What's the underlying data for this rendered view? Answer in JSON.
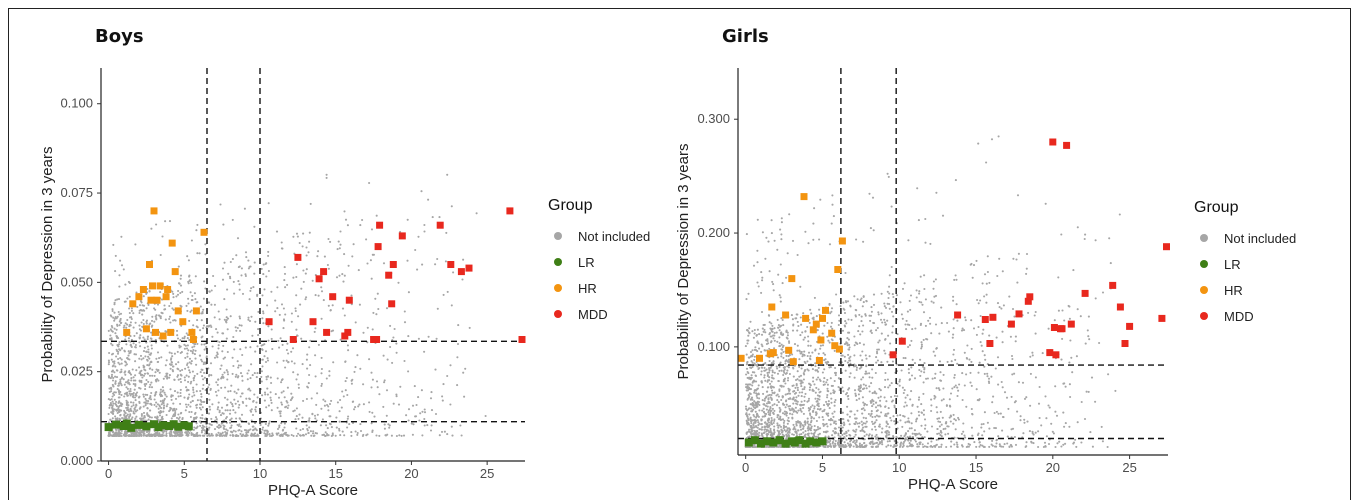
{
  "colors": {
    "not_included": "#a6a6a6",
    "lr": "#3f7f16",
    "hr": "#f39410",
    "mdd": "#e8281e"
  },
  "chart_data": [
    {
      "type": "scatter",
      "title": "Boys",
      "xlabel": "PHQ-A Score",
      "ylabel": "Probability of Depression in 3 years",
      "xlim": [
        -0.5,
        27.5
      ],
      "ylim": [
        0,
        0.11
      ],
      "xticks": [
        0,
        5,
        10,
        15,
        20,
        25
      ],
      "yticks": [
        0,
        0.025,
        0.05,
        0.075,
        0.1
      ],
      "ytick_labels": [
        "0.000",
        "0.025",
        "0.050",
        "0.075",
        "0.100"
      ],
      "vlines": [
        6.5,
        10
      ],
      "hlines": [
        0.011,
        0.0335
      ],
      "legend": {
        "title": "Group",
        "position": "right",
        "entries": [
          "Not included",
          "LR",
          "HR",
          "MDD"
        ]
      },
      "background": {
        "name": "Not included",
        "n": 2600,
        "hmin": 0.007,
        "hmax": 0.075,
        "maxval": 0.1
      },
      "series": [
        {
          "name": "LR",
          "points": [
            [
              0,
              0.0095
            ],
            [
              0.5,
              0.0102
            ],
            [
              1,
              0.0098
            ],
            [
              1.2,
              0.0105
            ],
            [
              1.5,
              0.0093
            ],
            [
              2,
              0.0101
            ],
            [
              2.5,
              0.0097
            ],
            [
              3,
              0.0103
            ],
            [
              3.3,
              0.0095
            ],
            [
              3.6,
              0.01
            ],
            [
              4,
              0.0098
            ],
            [
              4.3,
              0.0103
            ],
            [
              4.6,
              0.0096
            ],
            [
              5,
              0.01
            ],
            [
              5.3,
              0.0097
            ]
          ]
        },
        {
          "name": "HR",
          "points": [
            [
              1.2,
              0.036
            ],
            [
              1.6,
              0.044
            ],
            [
              2,
              0.046
            ],
            [
              2.3,
              0.048
            ],
            [
              2.5,
              0.037
            ],
            [
              2.7,
              0.055
            ],
            [
              2.8,
              0.045
            ],
            [
              2.9,
              0.049
            ],
            [
              3,
              0.07
            ],
            [
              3.1,
              0.036
            ],
            [
              3.2,
              0.045
            ],
            [
              3.4,
              0.049
            ],
            [
              3.6,
              0.035
            ],
            [
              3.8,
              0.046
            ],
            [
              3.9,
              0.048
            ],
            [
              4.1,
              0.036
            ],
            [
              4.2,
              0.061
            ],
            [
              4.4,
              0.053
            ],
            [
              4.6,
              0.042
            ],
            [
              4.9,
              0.039
            ],
            [
              5.5,
              0.036
            ],
            [
              5.6,
              0.034
            ],
            [
              5.8,
              0.042
            ],
            [
              6.3,
              0.064
            ]
          ]
        },
        {
          "name": "MDD",
          "points": [
            [
              10.6,
              0.039
            ],
            [
              12.2,
              0.034
            ],
            [
              12.5,
              0.057
            ],
            [
              13.5,
              0.039
            ],
            [
              13.9,
              0.051
            ],
            [
              14.2,
              0.053
            ],
            [
              14.4,
              0.036
            ],
            [
              14.8,
              0.046
            ],
            [
              15.6,
              0.035
            ],
            [
              15.8,
              0.036
            ],
            [
              15.9,
              0.045
            ],
            [
              17.5,
              0.034
            ],
            [
              17.7,
              0.034
            ],
            [
              17.8,
              0.06
            ],
            [
              17.9,
              0.066
            ],
            [
              18.5,
              0.052
            ],
            [
              18.7,
              0.044
            ],
            [
              18.8,
              0.055
            ],
            [
              19.4,
              0.063
            ],
            [
              21.9,
              0.066
            ],
            [
              22.6,
              0.055
            ],
            [
              23.3,
              0.053
            ],
            [
              23.8,
              0.054
            ],
            [
              26.5,
              0.07
            ],
            [
              27.3,
              0.034
            ]
          ]
        }
      ]
    },
    {
      "type": "scatter",
      "title": "Girls",
      "xlabel": "PHQ-A Score",
      "ylabel": "Probability of Depression in 3 years",
      "xlim": [
        -0.5,
        27.5
      ],
      "ylim": [
        0.005,
        0.345
      ],
      "xticks": [
        0,
        5,
        10,
        15,
        20,
        25
      ],
      "yticks": [
        0.1,
        0.2,
        0.3
      ],
      "ytick_labels": [
        "0.100",
        "0.200",
        "0.300"
      ],
      "vlines": [
        6.2,
        9.8
      ],
      "hlines": [
        0.0195,
        0.084
      ],
      "legend": {
        "title": "Group",
        "position": "right",
        "entries": [
          "Not included",
          "LR",
          "HR",
          "MDD"
        ]
      },
      "background": {
        "name": "Not included",
        "n": 2900,
        "hmin": 0.012,
        "hmax": 0.2,
        "maxval": 0.34
      },
      "series": [
        {
          "name": "LR",
          "points": [
            [
              0.2,
              0.016
            ],
            [
              0.6,
              0.018
            ],
            [
              1,
              0.015
            ],
            [
              1.4,
              0.017
            ],
            [
              1.8,
              0.016
            ],
            [
              2.2,
              0.018
            ],
            [
              2.6,
              0.015
            ],
            [
              3,
              0.017
            ],
            [
              3.2,
              0.016
            ],
            [
              3.5,
              0.018
            ],
            [
              3.9,
              0.015
            ],
            [
              4.2,
              0.017
            ],
            [
              4.6,
              0.016
            ],
            [
              5,
              0.017
            ]
          ]
        },
        {
          "name": "HR",
          "points": [
            [
              -0.3,
              0.09
            ],
            [
              0.9,
              0.09
            ],
            [
              1.6,
              0.094
            ],
            [
              1.7,
              0.135
            ],
            [
              1.8,
              0.095
            ],
            [
              2.6,
              0.128
            ],
            [
              2.8,
              0.097
            ],
            [
              3,
              0.16
            ],
            [
              3.1,
              0.087
            ],
            [
              3.8,
              0.232
            ],
            [
              3.9,
              0.125
            ],
            [
              4.4,
              0.115
            ],
            [
              4.6,
              0.12
            ],
            [
              4.8,
              0.088
            ],
            [
              4.9,
              0.106
            ],
            [
              5,
              0.125
            ],
            [
              5.2,
              0.132
            ],
            [
              5.6,
              0.112
            ],
            [
              5.8,
              0.101
            ],
            [
              6,
              0.168
            ],
            [
              6.1,
              0.098
            ],
            [
              6.3,
              0.193
            ]
          ]
        },
        {
          "name": "MDD",
          "points": [
            [
              9.6,
              0.093
            ],
            [
              10.2,
              0.105
            ],
            [
              13.8,
              0.128
            ],
            [
              15.6,
              0.124
            ],
            [
              15.9,
              0.103
            ],
            [
              16.1,
              0.126
            ],
            [
              17.3,
              0.12
            ],
            [
              17.8,
              0.129
            ],
            [
              18.4,
              0.14
            ],
            [
              18.5,
              0.144
            ],
            [
              19.8,
              0.095
            ],
            [
              20,
              0.28
            ],
            [
              20.1,
              0.117
            ],
            [
              20.2,
              0.093
            ],
            [
              20.5,
              0.116
            ],
            [
              20.6,
              0.116
            ],
            [
              20.9,
              0.277
            ],
            [
              21.2,
              0.12
            ],
            [
              22.1,
              0.147
            ],
            [
              23.9,
              0.154
            ],
            [
              24.4,
              0.135
            ],
            [
              24.7,
              0.103
            ],
            [
              25,
              0.118
            ],
            [
              27.1,
              0.125
            ],
            [
              27.4,
              0.188
            ]
          ]
        }
      ]
    }
  ]
}
